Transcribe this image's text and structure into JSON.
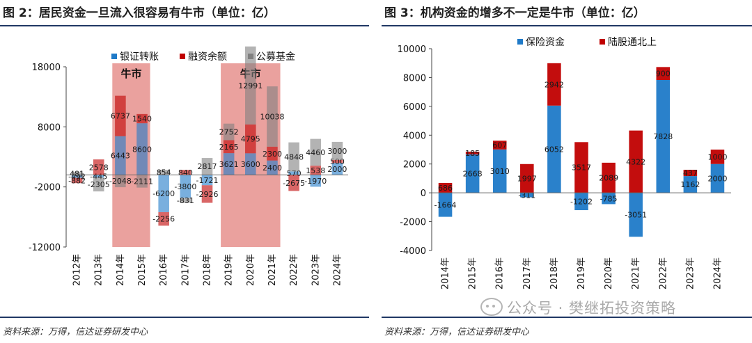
{
  "left": {
    "title": "图 2：居民资金一旦流入很容易有牛市（单位：亿）",
    "source": "资料来源：万得，信达证券研发中心"
  },
  "right": {
    "title": "图 3：机构资金的增多不一定是牛市（单位：亿）",
    "source": "资料来源：万得，信达证券研发中心"
  },
  "watermark": "公众号 · 樊继拓投资策略",
  "colors": {
    "blue": "#1f7ac8",
    "red": "#c00000",
    "gray": "#808080",
    "highlight": "#d9534f",
    "rule": "#1f3864"
  },
  "chart_data": [
    {
      "type": "bar",
      "stacked": true,
      "title": "图 2：居民资金一旦流入很容易有牛市（单位：亿）",
      "categories": [
        "2012年",
        "2013年",
        "2014年",
        "2015年",
        "2016年",
        "2017年",
        "2018年",
        "2019年",
        "2020年",
        "2021年",
        "2022年",
        "2023年",
        "2024年"
      ],
      "series": [
        {
          "name": "银证转账",
          "color": "#1f7ac8",
          "values": [
            -492,
            -445,
            6443,
            8600,
            -6200,
            -3800,
            -1721,
            3621,
            3600,
            2400,
            570,
            -1970,
            2000
          ]
        },
        {
          "name": "融资余额",
          "color": "#c00000",
          "values": [
            -882,
            2578,
            6737,
            1540,
            -2256,
            840,
            -2926,
            2165,
            4795,
            2300,
            -2675,
            1538,
            500
          ]
        },
        {
          "name": "公募基金",
          "color": "#808080",
          "values": [
            481,
            -2305,
            -2048,
            -2111,
            854,
            -831,
            2817,
            2752,
            12991,
            10038,
            4848,
            4460,
            3000
          ]
        }
      ],
      "ylim": [
        -12000,
        18000
      ],
      "yticks": [
        -12000,
        -2000,
        8000,
        18000
      ],
      "legend_position": "top",
      "annotations": [
        {
          "text": "牛市",
          "category_range": [
            "2014年",
            "2015年"
          ]
        },
        {
          "text": "牛市",
          "category_range": [
            "2019年",
            "2021年"
          ]
        }
      ],
      "grid": false
    },
    {
      "type": "bar",
      "stacked": true,
      "title": "图 3：机构资金的增多不一定是牛市（单位：亿）",
      "categories": [
        "2014年",
        "2015年",
        "2016年",
        "2017年",
        "2018年",
        "2019年",
        "2020年",
        "2021年",
        "2022年",
        "2023年",
        "2024年"
      ],
      "series": [
        {
          "name": "保险资金",
          "color": "#1f7ac8",
          "values": [
            -1664,
            2668,
            3010,
            -311,
            6052,
            -1202,
            -785,
            -3051,
            7828,
            1162,
            2000
          ]
        },
        {
          "name": "陆股通北上",
          "color": "#c00000",
          "values": [
            686,
            185,
            607,
            1997,
            2942,
            3517,
            2089,
            4322,
            900,
            437,
            1000
          ]
        }
      ],
      "ylim": [
        -4000,
        10000
      ],
      "yticks": [
        -4000,
        -2000,
        0,
        2000,
        4000,
        6000,
        8000,
        10000
      ],
      "legend_position": "top",
      "grid": false
    }
  ]
}
